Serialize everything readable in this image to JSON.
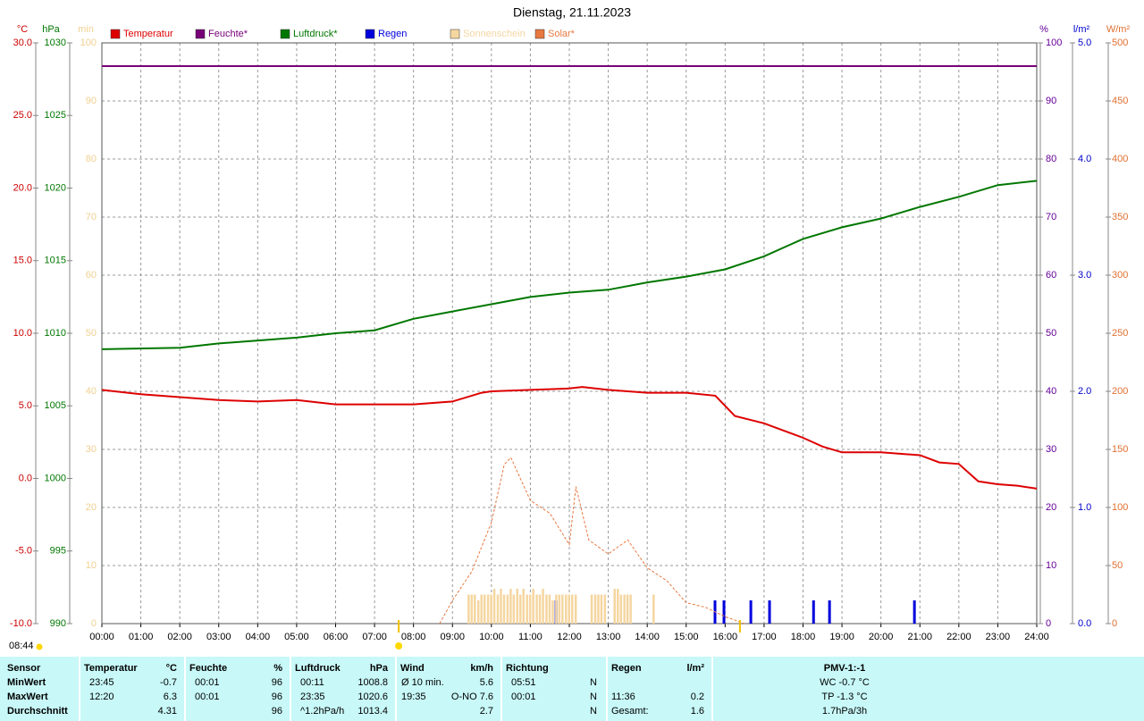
{
  "chart_data": {
    "type": "line",
    "title": "Dienstag, 21.11.2023",
    "day_length": "08:44",
    "sun_markers": [
      7.62,
      16.38
    ],
    "xlim": [
      0,
      24
    ],
    "xticks": [
      {
        "value": 0,
        "label": "00:00"
      },
      {
        "value": 1,
        "label": "01:00"
      },
      {
        "value": 2,
        "label": "02:00"
      },
      {
        "value": 3,
        "label": "03:00"
      },
      {
        "value": 4,
        "label": "04:00"
      },
      {
        "value": 5,
        "label": "05:00"
      },
      {
        "value": 6,
        "label": "06:00"
      },
      {
        "value": 7,
        "label": "07:00"
      },
      {
        "value": 8,
        "label": "08:00"
      },
      {
        "value": 9,
        "label": "09:00"
      },
      {
        "value": 10,
        "label": "10:00"
      },
      {
        "value": 11,
        "label": "11:00"
      },
      {
        "value": 12,
        "label": "12:00"
      },
      {
        "value": 13,
        "label": "13:00"
      },
      {
        "value": 14,
        "label": "14:00"
      },
      {
        "value": 15,
        "label": "15:00"
      },
      {
        "value": 16,
        "label": "16:00"
      },
      {
        "value": 17,
        "label": "17:00"
      },
      {
        "value": 18,
        "label": "18:00"
      },
      {
        "value": 19,
        "label": "19:00"
      },
      {
        "value": 20,
        "label": "20:00"
      },
      {
        "value": 21,
        "label": "21:00"
      },
      {
        "value": 22,
        "label": "22:00"
      },
      {
        "value": 23,
        "label": "23:00"
      },
      {
        "value": 24,
        "label": "24:00"
      }
    ],
    "grid": true,
    "axes": {
      "temp": {
        "unit": "°C",
        "color": "#cc0000",
        "side": "left",
        "lim": [
          -10,
          30
        ],
        "ticks": [
          {
            "value": -10,
            "label": "-10.0"
          },
          {
            "value": -5,
            "label": "-5.0"
          },
          {
            "value": 0,
            "label": "0.0"
          },
          {
            "value": 5,
            "label": "5.0"
          },
          {
            "value": 10,
            "label": "10.0"
          },
          {
            "value": 15,
            "label": "15.0"
          },
          {
            "value": 20,
            "label": "20.0"
          },
          {
            "value": 25,
            "label": "25.0"
          },
          {
            "value": 30,
            "label": "30.0"
          }
        ]
      },
      "pressure": {
        "unit": "hPa",
        "color": "#007700",
        "side": "left",
        "lim": [
          990,
          1030
        ],
        "ticks": [
          990,
          995,
          1000,
          1005,
          1010,
          1015,
          1020,
          1025,
          1030
        ]
      },
      "sunshine": {
        "unit": "min",
        "color": "#f0d090",
        "side": "left",
        "lim": [
          0,
          100
        ],
        "ticks": [
          0,
          10,
          20,
          30,
          40,
          50,
          60,
          70,
          80,
          90,
          100
        ]
      },
      "humidity": {
        "unit": "%",
        "color": "#660099",
        "side": "right",
        "lim": [
          0,
          100
        ],
        "ticks": [
          0,
          10,
          20,
          30,
          40,
          50,
          60,
          70,
          80,
          90,
          100
        ]
      },
      "rain": {
        "unit": "l/m²",
        "color": "#0000cc",
        "side": "right",
        "lim": [
          0,
          5
        ],
        "ticks": [
          {
            "value": 0,
            "label": "0.0"
          },
          {
            "value": 1,
            "label": "1.0"
          },
          {
            "value": 2,
            "label": "2.0"
          },
          {
            "value": 3,
            "label": "3.0"
          },
          {
            "value": 4,
            "label": "4.0"
          },
          {
            "value": 5,
            "label": "5.0"
          }
        ]
      },
      "solar": {
        "unit": "W/m²",
        "color": "#e07030",
        "side": "right",
        "lim": [
          0,
          500
        ],
        "ticks": [
          0,
          50,
          100,
          150,
          200,
          250,
          300,
          350,
          400,
          450,
          500
        ]
      }
    },
    "series": [
      {
        "name": "Temperatur",
        "color": "#dd0000",
        "axis": "temp",
        "type": "line",
        "x": [
          0,
          1,
          2,
          3,
          4,
          5,
          6,
          7,
          8,
          9,
          9.75,
          10,
          11,
          12,
          12.33,
          13,
          14,
          15,
          15.75,
          16.25,
          17,
          17.5,
          18,
          18.5,
          19,
          20,
          21,
          21.5,
          22,
          22.5,
          23,
          23.5,
          24
        ],
        "values": [
          6.1,
          5.8,
          5.6,
          5.4,
          5.3,
          5.4,
          5.1,
          5.1,
          5.1,
          5.3,
          5.9,
          6.0,
          6.1,
          6.2,
          6.3,
          6.1,
          5.9,
          5.9,
          5.7,
          4.3,
          3.8,
          3.3,
          2.8,
          2.2,
          1.8,
          1.8,
          1.6,
          1.1,
          1.0,
          -0.2,
          -0.4,
          -0.5,
          -0.7
        ]
      },
      {
        "name": "Feuchte*",
        "color": "#770077",
        "axis": "humidity",
        "type": "line",
        "x": [
          0,
          24
        ],
        "values": [
          96,
          96
        ]
      },
      {
        "name": "Luftdruck*",
        "color": "#007700",
        "axis": "pressure",
        "type": "line",
        "x": [
          0,
          2,
          3,
          5,
          6,
          7,
          8,
          9,
          10,
          11,
          12,
          13,
          14,
          15,
          16,
          17,
          18,
          19,
          20,
          21,
          22,
          23,
          24
        ],
        "values": [
          1008.9,
          1009.0,
          1009.3,
          1009.7,
          1010.0,
          1010.2,
          1011.0,
          1011.5,
          1012.0,
          1012.5,
          1012.8,
          1013.0,
          1013.5,
          1013.9,
          1014.4,
          1015.3,
          1016.5,
          1017.3,
          1017.9,
          1018.7,
          1019.4,
          1020.2,
          1020.5
        ]
      },
      {
        "name": "Regen",
        "color": "#0000dd",
        "axis": "rain",
        "type": "bar",
        "x": [
          11.66,
          15.74,
          15.97,
          16.66,
          17.14,
          18.27,
          18.68,
          20.86
        ],
        "values": [
          0.2,
          0.2,
          0.2,
          0.2,
          0.2,
          0.2,
          0.2,
          0.2
        ]
      },
      {
        "name": "Sonnenschein",
        "color": "#f5d6a0",
        "axis": "sunshine",
        "type": "bar",
        "x": [
          9.42,
          9.5,
          9.58,
          9.67,
          9.75,
          9.83,
          9.92,
          10.0,
          10.08,
          10.17,
          10.25,
          10.33,
          10.42,
          10.5,
          10.58,
          10.67,
          10.75,
          10.83,
          10.92,
          11.0,
          11.08,
          11.17,
          11.25,
          11.33,
          11.42,
          11.5,
          11.58,
          11.67,
          11.75,
          11.83,
          11.92,
          12.0,
          12.08,
          12.17,
          12.58,
          12.67,
          12.75,
          12.83,
          12.92,
          13.17,
          13.25,
          13.33,
          13.42,
          13.5,
          13.58,
          14.17
        ],
        "values": [
          5,
          5,
          5,
          4,
          5,
          5,
          5,
          5,
          6,
          5,
          6,
          5,
          5,
          6,
          5,
          6,
          5,
          6,
          5,
          5,
          6,
          5,
          5,
          6,
          5,
          5,
          4,
          5,
          5,
          5,
          5,
          5,
          5,
          5,
          5,
          5,
          5,
          5,
          5,
          6,
          6,
          5,
          5,
          5,
          5,
          5
        ]
      },
      {
        "name": "Solar*",
        "color": "#e87840",
        "axis": "solar",
        "type": "dashed",
        "x": [
          8.67,
          9,
          9.5,
          10,
          10.33,
          10.5,
          11,
          11.5,
          12,
          12.17,
          12.5,
          13,
          13.5,
          14,
          14.5,
          15,
          15.5,
          16,
          16.5
        ],
        "values": [
          0,
          20,
          45,
          87,
          137,
          143,
          106,
          95,
          68,
          118,
          72,
          60,
          72,
          48,
          37,
          18,
          14,
          6,
          0
        ]
      }
    ]
  },
  "table": {
    "header": [
      "Sensor",
      "Temperatur",
      "°C",
      "Feuchte",
      "%",
      "Luftdruck",
      "hPa",
      "Wind",
      "km/h",
      "Richtung",
      null,
      "Regen",
      "l/m²",
      "PMV-1:-1"
    ],
    "rows": [
      [
        "MinWert",
        "23:45",
        "-0.7",
        "00:01",
        "96",
        "00:11",
        "1008.8",
        "Ø 10 min.",
        "5.6",
        "05:51",
        "N",
        null,
        null,
        "WC -0.7 °C"
      ],
      [
        "MaxWert",
        "12:20",
        "6.3",
        "00:01",
        "96",
        "23:35",
        "1020.6",
        "19:35",
        "O-NO 7.6",
        "00:01",
        "N",
        "11:36",
        "0.2",
        "TP -1.3 °C"
      ],
      [
        "Durchschnitt",
        null,
        "4.31",
        null,
        "96",
        "^1.2hPa/h",
        "1013.4",
        null,
        "2.7",
        null,
        "N",
        "Gesamt:",
        "1.6",
        "1.7hPa/3h"
      ]
    ]
  }
}
